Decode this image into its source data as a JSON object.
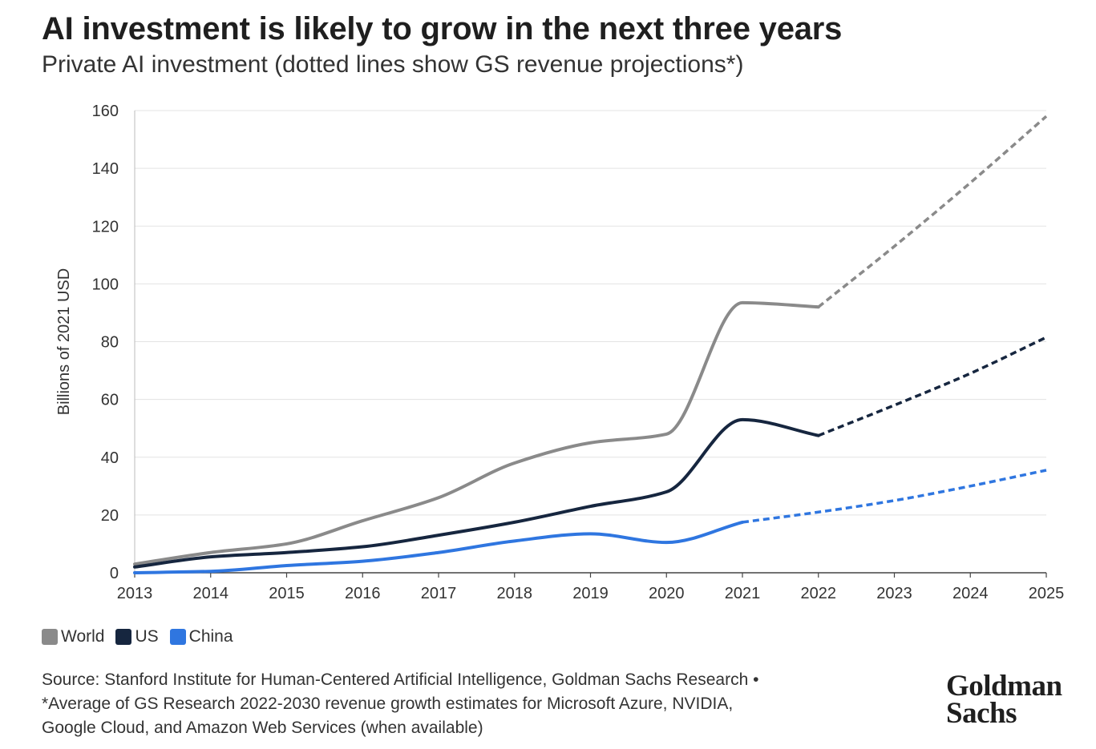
{
  "title": "AI investment is likely to grow in the next three years",
  "subtitle": "Private AI investment (dotted lines show GS revenue projections*)",
  "source": {
    "line1": "Source: Stanford Institute for Human-Centered Artificial Intelligence, Goldman Sachs Research •",
    "line2": "*Average of GS Research 2022-2030 revenue growth estimates for Microsoft Azure, NVIDIA,",
    "line3": "Google Cloud, and Amazon Web Services (when available)"
  },
  "logo": {
    "line1": "Goldman",
    "line2": "Sachs"
  },
  "chart_data": {
    "type": "line",
    "title": "AI investment is likely to grow in the next three years",
    "subtitle": "Private AI investment (dotted lines show GS revenue projections*)",
    "xlabel": "",
    "ylabel": "Billions of 2021 USD",
    "x": [
      2013,
      2014,
      2015,
      2016,
      2017,
      2018,
      2019,
      2020,
      2021,
      2022,
      2023,
      2024,
      2025
    ],
    "xlim": [
      2013,
      2025
    ],
    "ylim": [
      0,
      160
    ],
    "yticks": [
      0,
      20,
      40,
      60,
      80,
      100,
      120,
      140,
      160
    ],
    "grid": true,
    "legend_position": "bottom-left",
    "series": [
      {
        "name": "World",
        "color": "#8a8a8a",
        "values": [
          3,
          7,
          10,
          18,
          26,
          38,
          45,
          48,
          93.5,
          92,
          113,
          135,
          158
        ],
        "projection_start": 2022
      },
      {
        "name": "US",
        "color": "#16263f",
        "values": [
          2,
          5.5,
          7,
          9,
          13,
          17.5,
          23,
          28,
          53,
          47.5,
          58,
          69,
          81.5
        ],
        "projection_start": 2022
      },
      {
        "name": "China",
        "color": "#2f76e0",
        "values": [
          0,
          0.5,
          2.5,
          4,
          7,
          11,
          13.5,
          10.5,
          17.5,
          21,
          25,
          30,
          35.5
        ],
        "projection_start": 2021
      }
    ]
  }
}
